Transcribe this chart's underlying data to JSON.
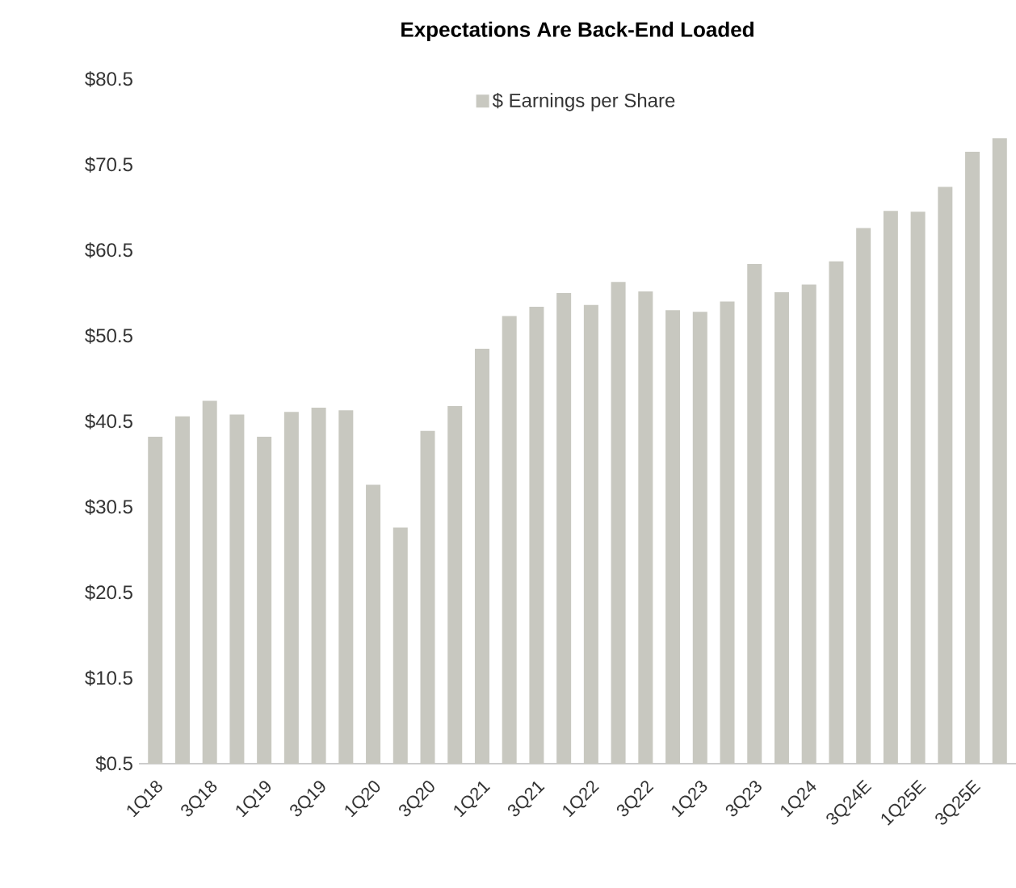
{
  "chart_data": {
    "type": "bar",
    "title": "Expectations Are Back-End Loaded",
    "categories": [
      "1Q18",
      null,
      "3Q18",
      null,
      "1Q19",
      null,
      "3Q19",
      null,
      "1Q20",
      null,
      "3Q20",
      null,
      "1Q21",
      null,
      "3Q21",
      null,
      "1Q22",
      null,
      "3Q22",
      null,
      "1Q23",
      null,
      "3Q23",
      null,
      "1Q24",
      null,
      "3Q24E",
      null,
      "1Q25E",
      null,
      "3Q25E",
      null
    ],
    "series": [
      {
        "name": "$ Earnings per Share",
        "color": "#c8c8c0",
        "values": [
          38.7,
          41.1,
          42.9,
          41.3,
          38.7,
          41.6,
          42.1,
          41.8,
          33.1,
          28.1,
          39.4,
          42.3,
          49.0,
          52.8,
          53.9,
          55.5,
          54.1,
          56.8,
          55.7,
          53.5,
          53.3,
          54.5,
          58.9,
          55.6,
          56.5,
          59.2,
          63.1,
          65.1,
          65.0,
          67.9,
          72.0,
          73.6
        ]
      }
    ],
    "ylim": [
      0.5,
      80.5
    ],
    "yticks": [
      {
        "value": 0.5,
        "label": "$0.5"
      },
      {
        "value": 10.5,
        "label": "$10.5"
      },
      {
        "value": 20.5,
        "label": "$20.5"
      },
      {
        "value": 30.5,
        "label": "$30.5"
      },
      {
        "value": 40.5,
        "label": "$40.5"
      },
      {
        "value": 50.5,
        "label": "$50.5"
      },
      {
        "value": 60.5,
        "label": "$60.5"
      },
      {
        "value": 70.5,
        "label": "$70.5"
      },
      {
        "value": 80.5,
        "label": "$80.5"
      }
    ],
    "legend": "top",
    "grid": false
  }
}
